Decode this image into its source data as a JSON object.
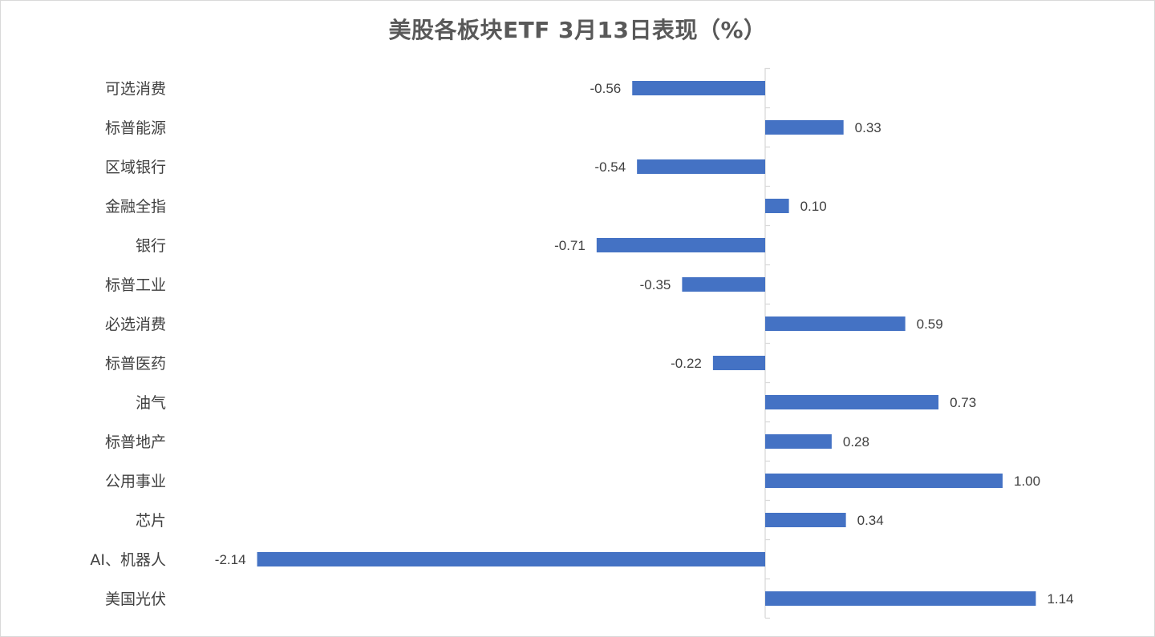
{
  "chart_data": {
    "type": "bar",
    "orientation": "horizontal",
    "title": "美股各板块ETF  3月13日表现（%）",
    "categories": [
      "可选消费",
      "标普能源",
      "区域银行",
      "金融全指",
      "银行",
      "标普工业",
      "必选消费",
      "标普医药",
      "油气",
      "标普地产",
      "公用事业",
      "芯片",
      "AI、机器人",
      "美国光伏"
    ],
    "values": [
      -0.56,
      0.33,
      -0.54,
      0.1,
      -0.71,
      -0.35,
      0.59,
      -0.22,
      0.73,
      0.28,
      1.0,
      0.34,
      -2.14,
      1.14
    ],
    "value_labels": [
      "-0.56",
      "0.33",
      "-0.54",
      "0.10",
      "-0.71",
      "-0.35",
      "0.59",
      "-0.22",
      "0.73",
      "0.28",
      "1.00",
      "0.34",
      "-2.14",
      "1.14"
    ],
    "bar_color": "#4472C4",
    "xlim": [
      -2.14,
      1.14
    ],
    "grid": false,
    "legend": "none"
  }
}
